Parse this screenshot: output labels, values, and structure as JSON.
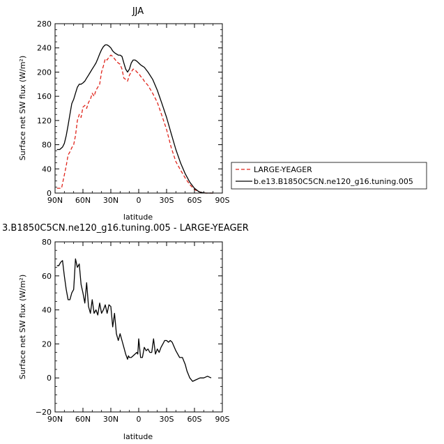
{
  "chart_data": [
    {
      "type": "line",
      "title": "JJA",
      "xlabel": "latitude",
      "ylabel": "Surface net SW flux (W/m²)",
      "xlim": [
        90,
        -90
      ],
      "ylim": [
        0,
        280
      ],
      "x_ticks": [
        90,
        60,
        30,
        0,
        -30,
        -60,
        -90
      ],
      "x_tick_labels": [
        "90N",
        "60N",
        "30N",
        "0",
        "30S",
        "60S",
        "90S"
      ],
      "y_ticks": [
        0,
        40,
        80,
        120,
        160,
        200,
        240,
        280
      ],
      "y_tick_labels": [
        "0",
        "40",
        "80",
        "120",
        "160",
        "200",
        "240",
        "280"
      ],
      "legend": "outside-right",
      "series": [
        {
          "name": "LARGE-YEAGER",
          "color": "#e0241b",
          "dash": "dashed",
          "x": [
            88,
            83,
            80,
            78,
            76,
            74,
            72,
            70,
            68,
            66,
            64,
            62,
            60,
            58,
            56,
            54,
            52,
            50,
            48,
            46,
            44,
            42,
            40,
            38,
            36,
            34,
            32,
            30,
            28,
            26,
            24,
            22,
            20,
            18,
            16,
            14,
            12,
            10,
            8,
            6,
            4,
            2,
            0,
            -2,
            -4,
            -6,
            -10,
            -15,
            -20,
            -25,
            -30,
            -35,
            -40,
            -45,
            -50,
            -55,
            -60,
            -65,
            -68,
            -72,
            -76,
            -80
          ],
          "values": [
            8,
            8,
            30,
            45,
            63,
            68,
            75,
            80,
            95,
            120,
            130,
            125,
            142,
            145,
            140,
            150,
            155,
            165,
            160,
            170,
            175,
            180,
            200,
            210,
            222,
            220,
            225,
            228,
            226,
            222,
            218,
            215,
            213,
            205,
            190,
            188,
            185,
            195,
            200,
            205,
            204,
            200,
            198,
            193,
            190,
            185,
            178,
            165,
            150,
            128,
            105,
            75,
            52,
            38,
            25,
            14,
            6,
            2,
            1,
            0,
            0,
            0
          ]
        },
        {
          "name": "b.e13.B1850C5CN.ne120_g16.tuning.005",
          "color": "#000000",
          "dash": "solid",
          "x": [
            88,
            85,
            82,
            80,
            78,
            76,
            74,
            72,
            70,
            68,
            66,
            64,
            62,
            60,
            58,
            56,
            54,
            52,
            50,
            48,
            46,
            44,
            42,
            40,
            38,
            36,
            34,
            32,
            30,
            28,
            26,
            24,
            22,
            20,
            18,
            16,
            14,
            12,
            10,
            8,
            6,
            4,
            2,
            0,
            -2,
            -4,
            -6,
            -10,
            -15,
            -20,
            -25,
            -30,
            -35,
            -40,
            -45,
            -50,
            -55,
            -60,
            -65,
            -68,
            -72,
            -76,
            -80
          ],
          "values": [
            72,
            72,
            76,
            82,
            95,
            112,
            130,
            148,
            155,
            165,
            175,
            180,
            180,
            182,
            185,
            190,
            195,
            200,
            205,
            210,
            215,
            222,
            230,
            237,
            242,
            245,
            245,
            243,
            240,
            235,
            232,
            230,
            228,
            228,
            226,
            215,
            205,
            200,
            205,
            215,
            220,
            220,
            218,
            215,
            212,
            210,
            208,
            200,
            188,
            170,
            148,
            125,
            98,
            72,
            50,
            32,
            18,
            8,
            2,
            1,
            0,
            0,
            0
          ]
        }
      ]
    },
    {
      "type": "line",
      "title": "3.B1850C5CN.ne120_g16.tuning.005 - LARGE-YEAGER",
      "xlabel": "latitude",
      "ylabel": "Surface net SW flux (W/m²)",
      "xlim": [
        90,
        -90
      ],
      "ylim": [
        -20,
        80
      ],
      "x_ticks": [
        90,
        60,
        30,
        0,
        -30,
        -60,
        -90
      ],
      "x_tick_labels": [
        "90N",
        "60N",
        "30N",
        "0",
        "30S",
        "60S",
        "90S"
      ],
      "y_ticks": [
        -20,
        0,
        20,
        40,
        60,
        80
      ],
      "y_tick_labels": [
        "−20",
        "0",
        "20",
        "40",
        "60",
        "80"
      ],
      "series": [
        {
          "color": "#000000",
          "dash": "solid",
          "x": [
            88,
            86,
            84,
            82,
            80,
            78,
            76,
            74,
            72,
            70,
            68,
            66,
            64,
            62,
            60,
            58,
            56,
            54,
            52,
            50,
            48,
            46,
            44,
            42,
            40,
            38,
            36,
            34,
            32,
            30,
            28,
            26,
            24,
            22,
            20,
            18,
            16,
            14,
            12,
            11,
            10,
            8,
            6,
            4,
            2,
            1,
            0,
            -2,
            -4,
            -6,
            -8,
            -10,
            -12,
            -14,
            -16,
            -18,
            -20,
            -22,
            -24,
            -26,
            -28,
            -30,
            -32,
            -34,
            -36,
            -40,
            -44,
            -47,
            -50,
            -52,
            -55,
            -58,
            -62,
            -66,
            -70,
            -74,
            -78
          ],
          "values": [
            66,
            66,
            68,
            69,
            60,
            52,
            46,
            46,
            50,
            52,
            70,
            65,
            67,
            55,
            50,
            44,
            56,
            42,
            38,
            46,
            38,
            40,
            37,
            44,
            38,
            40,
            43,
            38,
            43,
            42,
            30,
            38,
            26,
            22,
            26,
            22,
            18,
            14,
            11,
            13,
            12,
            12,
            13,
            14,
            15,
            14,
            23,
            12,
            12,
            18,
            16,
            17,
            15,
            15,
            23,
            14,
            17,
            15,
            18,
            20,
            22,
            22,
            21,
            22,
            21,
            16,
            12,
            12,
            8,
            4,
            0,
            -2,
            -1,
            0,
            0,
            1,
            0
          ]
        }
      ]
    }
  ]
}
